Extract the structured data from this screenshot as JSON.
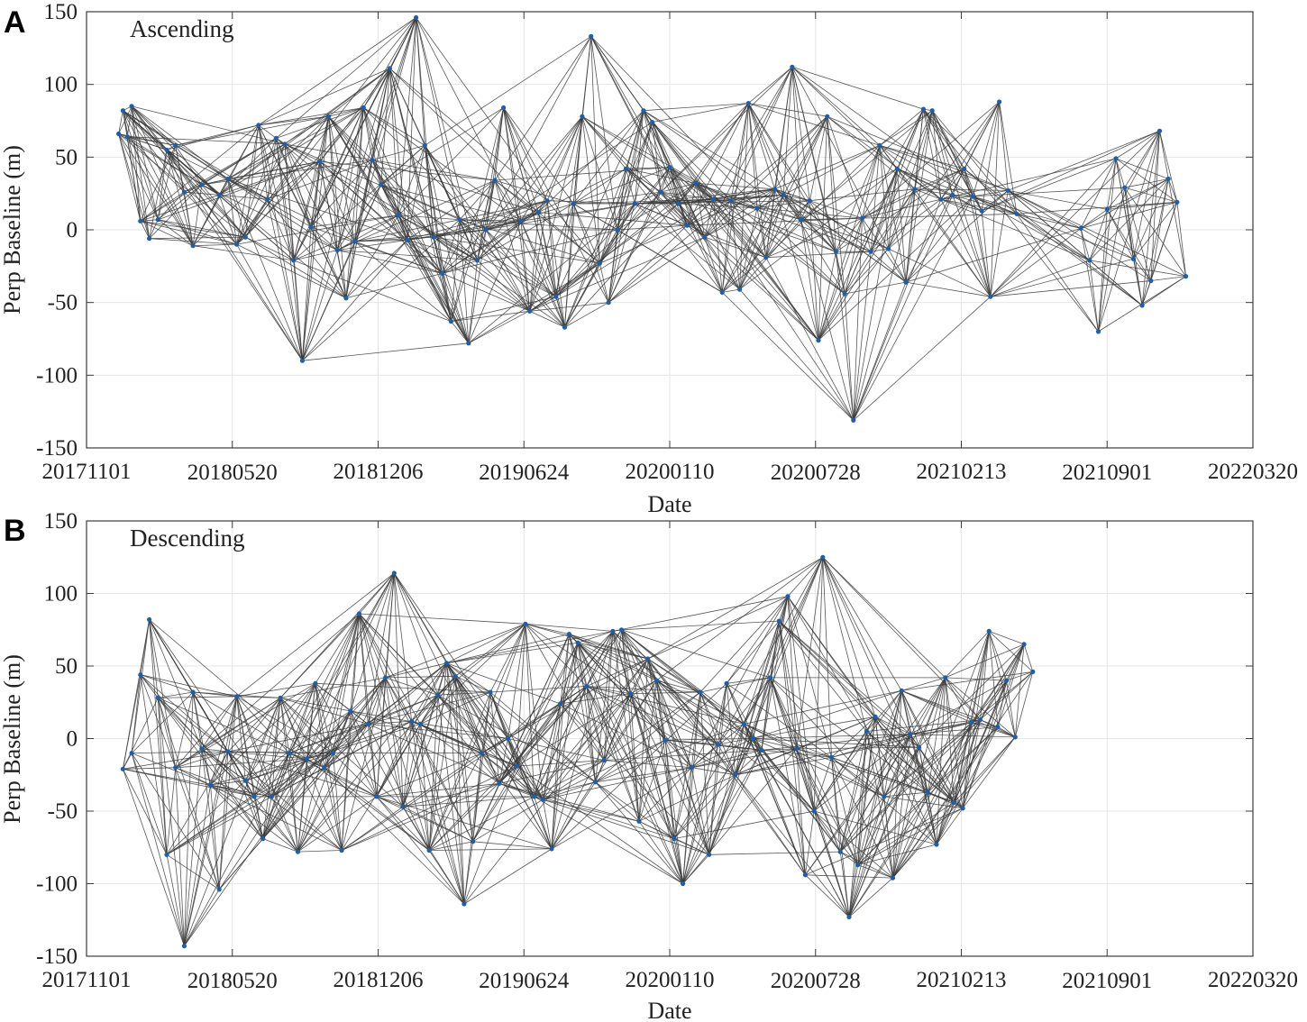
{
  "chart_data": [
    {
      "panel": "A",
      "type": "scatter",
      "title": "Ascending",
      "xlabel": "Date",
      "ylabel": "Perp Baseline (m)",
      "xlim": [
        "20171101",
        "20220320"
      ],
      "ylim": [
        -150,
        150
      ],
      "x_ticks": [
        "20171101",
        "20180520",
        "20181206",
        "20190624",
        "20200110",
        "20200728",
        "20210213",
        "20210901",
        "20220320"
      ],
      "y_ticks": [
        -150,
        -100,
        -50,
        0,
        50,
        100,
        150
      ],
      "point_color": "#1f5fa8",
      "link_color": "#3a3a3a",
      "acquisitions": [
        {
          "date": "20171215",
          "bperp": 66
        },
        {
          "date": "20171221",
          "bperp": 82
        },
        {
          "date": "20171227",
          "bperp": 64
        },
        {
          "date": "20180102",
          "bperp": 85
        },
        {
          "date": "20180114",
          "bperp": 6
        },
        {
          "date": "20180126",
          "bperp": -6
        },
        {
          "date": "20180207",
          "bperp": 7
        },
        {
          "date": "20180219",
          "bperp": 55
        },
        {
          "date": "20180303",
          "bperp": 58
        },
        {
          "date": "20180315",
          "bperp": 26
        },
        {
          "date": "20180327",
          "bperp": -11
        },
        {
          "date": "20180408",
          "bperp": 31
        },
        {
          "date": "20180502",
          "bperp": 24
        },
        {
          "date": "20180514",
          "bperp": 35
        },
        {
          "date": "20180526",
          "bperp": -10
        },
        {
          "date": "20180607",
          "bperp": -5
        },
        {
          "date": "20180625",
          "bperp": 72
        },
        {
          "date": "20180707",
          "bperp": 21
        },
        {
          "date": "20180719",
          "bperp": 63
        },
        {
          "date": "20180731",
          "bperp": 59
        },
        {
          "date": "20180812",
          "bperp": -21
        },
        {
          "date": "20180824",
          "bperp": -90
        },
        {
          "date": "20180905",
          "bperp": 2
        },
        {
          "date": "20180917",
          "bperp": 47
        },
        {
          "date": "20180929",
          "bperp": 78
        },
        {
          "date": "20181011",
          "bperp": -14
        },
        {
          "date": "20181023",
          "bperp": -47
        },
        {
          "date": "20181104",
          "bperp": -8
        },
        {
          "date": "20181116",
          "bperp": 84
        },
        {
          "date": "20181128",
          "bperp": 48
        },
        {
          "date": "20181210",
          "bperp": 31
        },
        {
          "date": "20181222",
          "bperp": 111
        },
        {
          "date": "20190103",
          "bperp": 10
        },
        {
          "date": "20190115",
          "bperp": -7
        },
        {
          "date": "20190127",
          "bperp": 146
        },
        {
          "date": "20190208",
          "bperp": 58
        },
        {
          "date": "20190220",
          "bperp": -5
        },
        {
          "date": "20190304",
          "bperp": -30
        },
        {
          "date": "20190316",
          "bperp": -63
        },
        {
          "date": "20190328",
          "bperp": 7
        },
        {
          "date": "20190409",
          "bperp": -78
        },
        {
          "date": "20190421",
          "bperp": -21
        },
        {
          "date": "20190503",
          "bperp": 0
        },
        {
          "date": "20190515",
          "bperp": 34
        },
        {
          "date": "20190527",
          "bperp": 84
        },
        {
          "date": "20190620",
          "bperp": 6
        },
        {
          "date": "20190702",
          "bperp": -56
        },
        {
          "date": "20190714",
          "bperp": 12
        },
        {
          "date": "20190726",
          "bperp": 20
        },
        {
          "date": "20190807",
          "bperp": -46
        },
        {
          "date": "20190819",
          "bperp": -67
        },
        {
          "date": "20190831",
          "bperp": 18
        },
        {
          "date": "20190912",
          "bperp": 78
        },
        {
          "date": "20190924",
          "bperp": 133
        },
        {
          "date": "20191006",
          "bperp": -23
        },
        {
          "date": "20191018",
          "bperp": -50
        },
        {
          "date": "20191030",
          "bperp": 0
        },
        {
          "date": "20191111",
          "bperp": 42
        },
        {
          "date": "20191123",
          "bperp": 18
        },
        {
          "date": "20191205",
          "bperp": 82
        },
        {
          "date": "20191217",
          "bperp": 74
        },
        {
          "date": "20191229",
          "bperp": 26
        },
        {
          "date": "20200110",
          "bperp": 43
        },
        {
          "date": "20200122",
          "bperp": 18
        },
        {
          "date": "20200203",
          "bperp": 3
        },
        {
          "date": "20200215",
          "bperp": 32
        },
        {
          "date": "20200227",
          "bperp": -5
        },
        {
          "date": "20200310",
          "bperp": 21
        },
        {
          "date": "20200322",
          "bperp": -43
        },
        {
          "date": "20200403",
          "bperp": 20
        },
        {
          "date": "20200415",
          "bperp": -41
        },
        {
          "date": "20200427",
          "bperp": 87
        },
        {
          "date": "20200509",
          "bperp": 15
        },
        {
          "date": "20200521",
          "bperp": -19
        },
        {
          "date": "20200602",
          "bperp": 28
        },
        {
          "date": "20200614",
          "bperp": 24
        },
        {
          "date": "20200626",
          "bperp": 112
        },
        {
          "date": "20200708",
          "bperp": 7
        },
        {
          "date": "20200720",
          "bperp": 20
        },
        {
          "date": "20200801",
          "bperp": -76
        },
        {
          "date": "20200813",
          "bperp": 78
        },
        {
          "date": "20200825",
          "bperp": -15
        },
        {
          "date": "20200906",
          "bperp": -44
        },
        {
          "date": "20200918",
          "bperp": -131
        },
        {
          "date": "20200930",
          "bperp": 8
        },
        {
          "date": "20201012",
          "bperp": -15
        },
        {
          "date": "20201024",
          "bperp": 58
        },
        {
          "date": "20201105",
          "bperp": -13
        },
        {
          "date": "20201117",
          "bperp": 42
        },
        {
          "date": "20201129",
          "bperp": -36
        },
        {
          "date": "20201211",
          "bperp": 28
        },
        {
          "date": "20201223",
          "bperp": 83
        },
        {
          "date": "20210104",
          "bperp": 82
        },
        {
          "date": "20210116",
          "bperp": 21
        },
        {
          "date": "20210201",
          "bperp": 24
        },
        {
          "date": "20210217",
          "bperp": 42
        },
        {
          "date": "20210301",
          "bperp": 23
        },
        {
          "date": "20210313",
          "bperp": 13
        },
        {
          "date": "20210325",
          "bperp": -46
        },
        {
          "date": "20210406",
          "bperp": 88
        },
        {
          "date": "20210418",
          "bperp": 27
        },
        {
          "date": "20210430",
          "bperp": 11
        },
        {
          "date": "20210727",
          "bperp": 1
        },
        {
          "date": "20210808",
          "bperp": -21
        },
        {
          "date": "20210820",
          "bperp": -70
        },
        {
          "date": "20210901",
          "bperp": 14
        },
        {
          "date": "20210913",
          "bperp": 49
        },
        {
          "date": "20210925",
          "bperp": 29
        },
        {
          "date": "20211007",
          "bperp": -20
        },
        {
          "date": "20211019",
          "bperp": -52
        },
        {
          "date": "20211031",
          "bperp": -35
        },
        {
          "date": "20211112",
          "bperp": 68
        },
        {
          "date": "20211124",
          "bperp": 35
        },
        {
          "date": "20211206",
          "bperp": 19
        },
        {
          "date": "20211218",
          "bperp": -32
        }
      ]
    },
    {
      "panel": "B",
      "type": "scatter",
      "title": "Descending",
      "xlabel": "Date",
      "ylabel": "Perp Baseline (m)",
      "xlim": [
        "20171101",
        "20220320"
      ],
      "ylim": [
        -150,
        150
      ],
      "x_ticks": [
        "20171101",
        "20180520",
        "20181206",
        "20190624",
        "20200110",
        "20200728",
        "20210213",
        "20210901",
        "20220320"
      ],
      "y_ticks": [
        -150,
        -100,
        -50,
        0,
        50,
        100,
        150
      ],
      "point_color": "#1f5fa8",
      "link_color": "#3a3a3a",
      "acquisitions": [
        {
          "date": "20171221",
          "bperp": -21
        },
        {
          "date": "20180102",
          "bperp": -10
        },
        {
          "date": "20180114",
          "bperp": 44
        },
        {
          "date": "20180126",
          "bperp": 82
        },
        {
          "date": "20180207",
          "bperp": 28
        },
        {
          "date": "20180219",
          "bperp": -80
        },
        {
          "date": "20180303",
          "bperp": -20
        },
        {
          "date": "20180315",
          "bperp": -143
        },
        {
          "date": "20180327",
          "bperp": 32
        },
        {
          "date": "20180408",
          "bperp": -7
        },
        {
          "date": "20180420",
          "bperp": -32
        },
        {
          "date": "20180502",
          "bperp": -104
        },
        {
          "date": "20180514",
          "bperp": -9
        },
        {
          "date": "20180526",
          "bperp": 29
        },
        {
          "date": "20180607",
          "bperp": -29
        },
        {
          "date": "20180619",
          "bperp": -40
        },
        {
          "date": "20180701",
          "bperp": -69
        },
        {
          "date": "20180713",
          "bperp": -40
        },
        {
          "date": "20180725",
          "bperp": 28
        },
        {
          "date": "20180806",
          "bperp": -10
        },
        {
          "date": "20180818",
          "bperp": -78
        },
        {
          "date": "20180830",
          "bperp": -14
        },
        {
          "date": "20180911",
          "bperp": 38
        },
        {
          "date": "20180923",
          "bperp": -20
        },
        {
          "date": "20181005",
          "bperp": -10
        },
        {
          "date": "20181017",
          "bperp": -77
        },
        {
          "date": "20181029",
          "bperp": 19
        },
        {
          "date": "20181110",
          "bperp": 86
        },
        {
          "date": "20181122",
          "bperp": 10
        },
        {
          "date": "20181204",
          "bperp": -40
        },
        {
          "date": "20181216",
          "bperp": 42
        },
        {
          "date": "20181228",
          "bperp": 114
        },
        {
          "date": "20190109",
          "bperp": -47
        },
        {
          "date": "20190121",
          "bperp": 12
        },
        {
          "date": "20190202",
          "bperp": 10
        },
        {
          "date": "20190214",
          "bperp": -77
        },
        {
          "date": "20190226",
          "bperp": 30
        },
        {
          "date": "20190310",
          "bperp": 52
        },
        {
          "date": "20190322",
          "bperp": 43
        },
        {
          "date": "20190403",
          "bperp": -114
        },
        {
          "date": "20190415",
          "bperp": -71
        },
        {
          "date": "20190427",
          "bperp": -10
        },
        {
          "date": "20190509",
          "bperp": 32
        },
        {
          "date": "20190521",
          "bperp": -31
        },
        {
          "date": "20190602",
          "bperp": 0
        },
        {
          "date": "20190614",
          "bperp": -19
        },
        {
          "date": "20190626",
          "bperp": 79
        },
        {
          "date": "20190708",
          "bperp": -40
        },
        {
          "date": "20190720",
          "bperp": -42
        },
        {
          "date": "20190801",
          "bperp": -76
        },
        {
          "date": "20190813",
          "bperp": 24
        },
        {
          "date": "20190825",
          "bperp": 72
        },
        {
          "date": "20190906",
          "bperp": 66
        },
        {
          "date": "20190918",
          "bperp": 36
        },
        {
          "date": "20190930",
          "bperp": -30
        },
        {
          "date": "20191012",
          "bperp": -15
        },
        {
          "date": "20191024",
          "bperp": 74
        },
        {
          "date": "20191105",
          "bperp": 75
        },
        {
          "date": "20191117",
          "bperp": 31
        },
        {
          "date": "20191129",
          "bperp": -57
        },
        {
          "date": "20191211",
          "bperp": 55
        },
        {
          "date": "20191223",
          "bperp": 40
        },
        {
          "date": "20200104",
          "bperp": -1
        },
        {
          "date": "20200116",
          "bperp": -69
        },
        {
          "date": "20200128",
          "bperp": -100
        },
        {
          "date": "20200209",
          "bperp": -20
        },
        {
          "date": "20200221",
          "bperp": 32
        },
        {
          "date": "20200304",
          "bperp": -80
        },
        {
          "date": "20200316",
          "bperp": -4
        },
        {
          "date": "20200328",
          "bperp": 38
        },
        {
          "date": "20200409",
          "bperp": -25
        },
        {
          "date": "20200421",
          "bperp": 10
        },
        {
          "date": "20200503",
          "bperp": 0
        },
        {
          "date": "20200515",
          "bperp": -8
        },
        {
          "date": "20200527",
          "bperp": 42
        },
        {
          "date": "20200608",
          "bperp": 81
        },
        {
          "date": "20200620",
          "bperp": 98
        },
        {
          "date": "20200702",
          "bperp": -7
        },
        {
          "date": "20200714",
          "bperp": -94
        },
        {
          "date": "20200726",
          "bperp": -50
        },
        {
          "date": "20200807",
          "bperp": 125
        },
        {
          "date": "20200819",
          "bperp": -13
        },
        {
          "date": "20200831",
          "bperp": -78
        },
        {
          "date": "20200912",
          "bperp": -123
        },
        {
          "date": "20200924",
          "bperp": -87
        },
        {
          "date": "20201006",
          "bperp": 5
        },
        {
          "date": "20201018",
          "bperp": 15
        },
        {
          "date": "20201030",
          "bperp": -40
        },
        {
          "date": "20201111",
          "bperp": -96
        },
        {
          "date": "20201123",
          "bperp": 33
        },
        {
          "date": "20201205",
          "bperp": 3
        },
        {
          "date": "20201217",
          "bperp": -6
        },
        {
          "date": "20201229",
          "bperp": -37
        },
        {
          "date": "20210110",
          "bperp": -73
        },
        {
          "date": "20210122",
          "bperp": 42
        },
        {
          "date": "20210203",
          "bperp": -44
        },
        {
          "date": "20210215",
          "bperp": -48
        },
        {
          "date": "20210227",
          "bperp": 11
        },
        {
          "date": "20210311",
          "bperp": 13
        },
        {
          "date": "20210323",
          "bperp": 74
        },
        {
          "date": "20210404",
          "bperp": 8
        },
        {
          "date": "20210416",
          "bperp": 40
        },
        {
          "date": "20210428",
          "bperp": 1
        },
        {
          "date": "20210510",
          "bperp": 65
        },
        {
          "date": "20210522",
          "bperp": 46
        }
      ]
    }
  ],
  "panels": [
    {
      "letter": "A",
      "title": "Ascending"
    },
    {
      "letter": "B",
      "title": "Descending"
    }
  ]
}
